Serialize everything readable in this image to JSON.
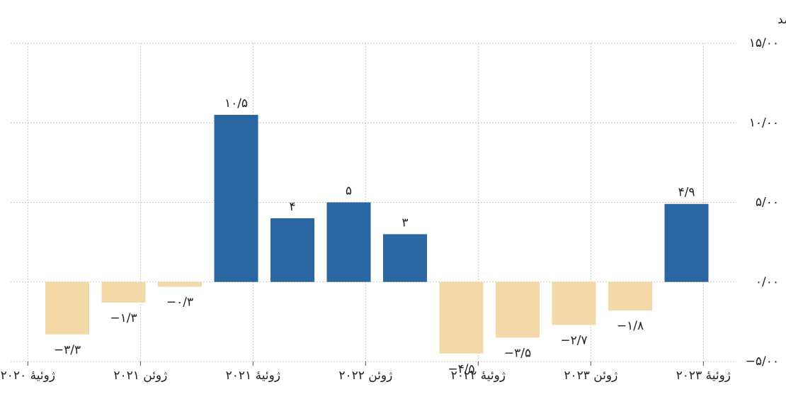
{
  "chart_data": {
    "type": "bar",
    "unit_label": "درصد",
    "categories": [
      null,
      null,
      null,
      null,
      null,
      null,
      null,
      null,
      null,
      null,
      null,
      null
    ],
    "values": [
      -3.3,
      -1.3,
      -0.3,
      10.5,
      4,
      5,
      3,
      -4.5,
      -3.5,
      -2.7,
      -1.8,
      4.9
    ],
    "value_labels": [
      "−۳/۳",
      "−۱/۳",
      "−۰/۳",
      "۱۰/۵",
      "۴",
      "۵",
      "۳",
      "−۴/۵",
      "−۳/۵",
      "−۲/۷",
      "−۱/۸",
      "۴/۹"
    ],
    "positive_color": "#2a67a2",
    "negative_color": "#f3d9a8",
    "xtick_labels": [
      "ژوئیهٔ ۲۰۲۰",
      "ژوئن ۲۰۲۱",
      "ژوئیهٔ ۲۰۲۱",
      "ژوئن ۲۰۲۲",
      "ژوئیهٔ ۲۰۲۲",
      "ژوئن ۲۰۲۳",
      "ژوئیهٔ ۲۰۲۳"
    ],
    "ylim": [
      -5,
      15
    ],
    "yticks": [
      {
        "value": -5,
        "label": "−۵/۰۰"
      },
      {
        "value": 0,
        "label": "۰/۰۰"
      },
      {
        "value": 5,
        "label": "۵/۰۰"
      },
      {
        "value": 10,
        "label": "۱۰/۰۰"
      },
      {
        "value": 15,
        "label": "۱۵/۰۰"
      }
    ],
    "grid": true
  }
}
